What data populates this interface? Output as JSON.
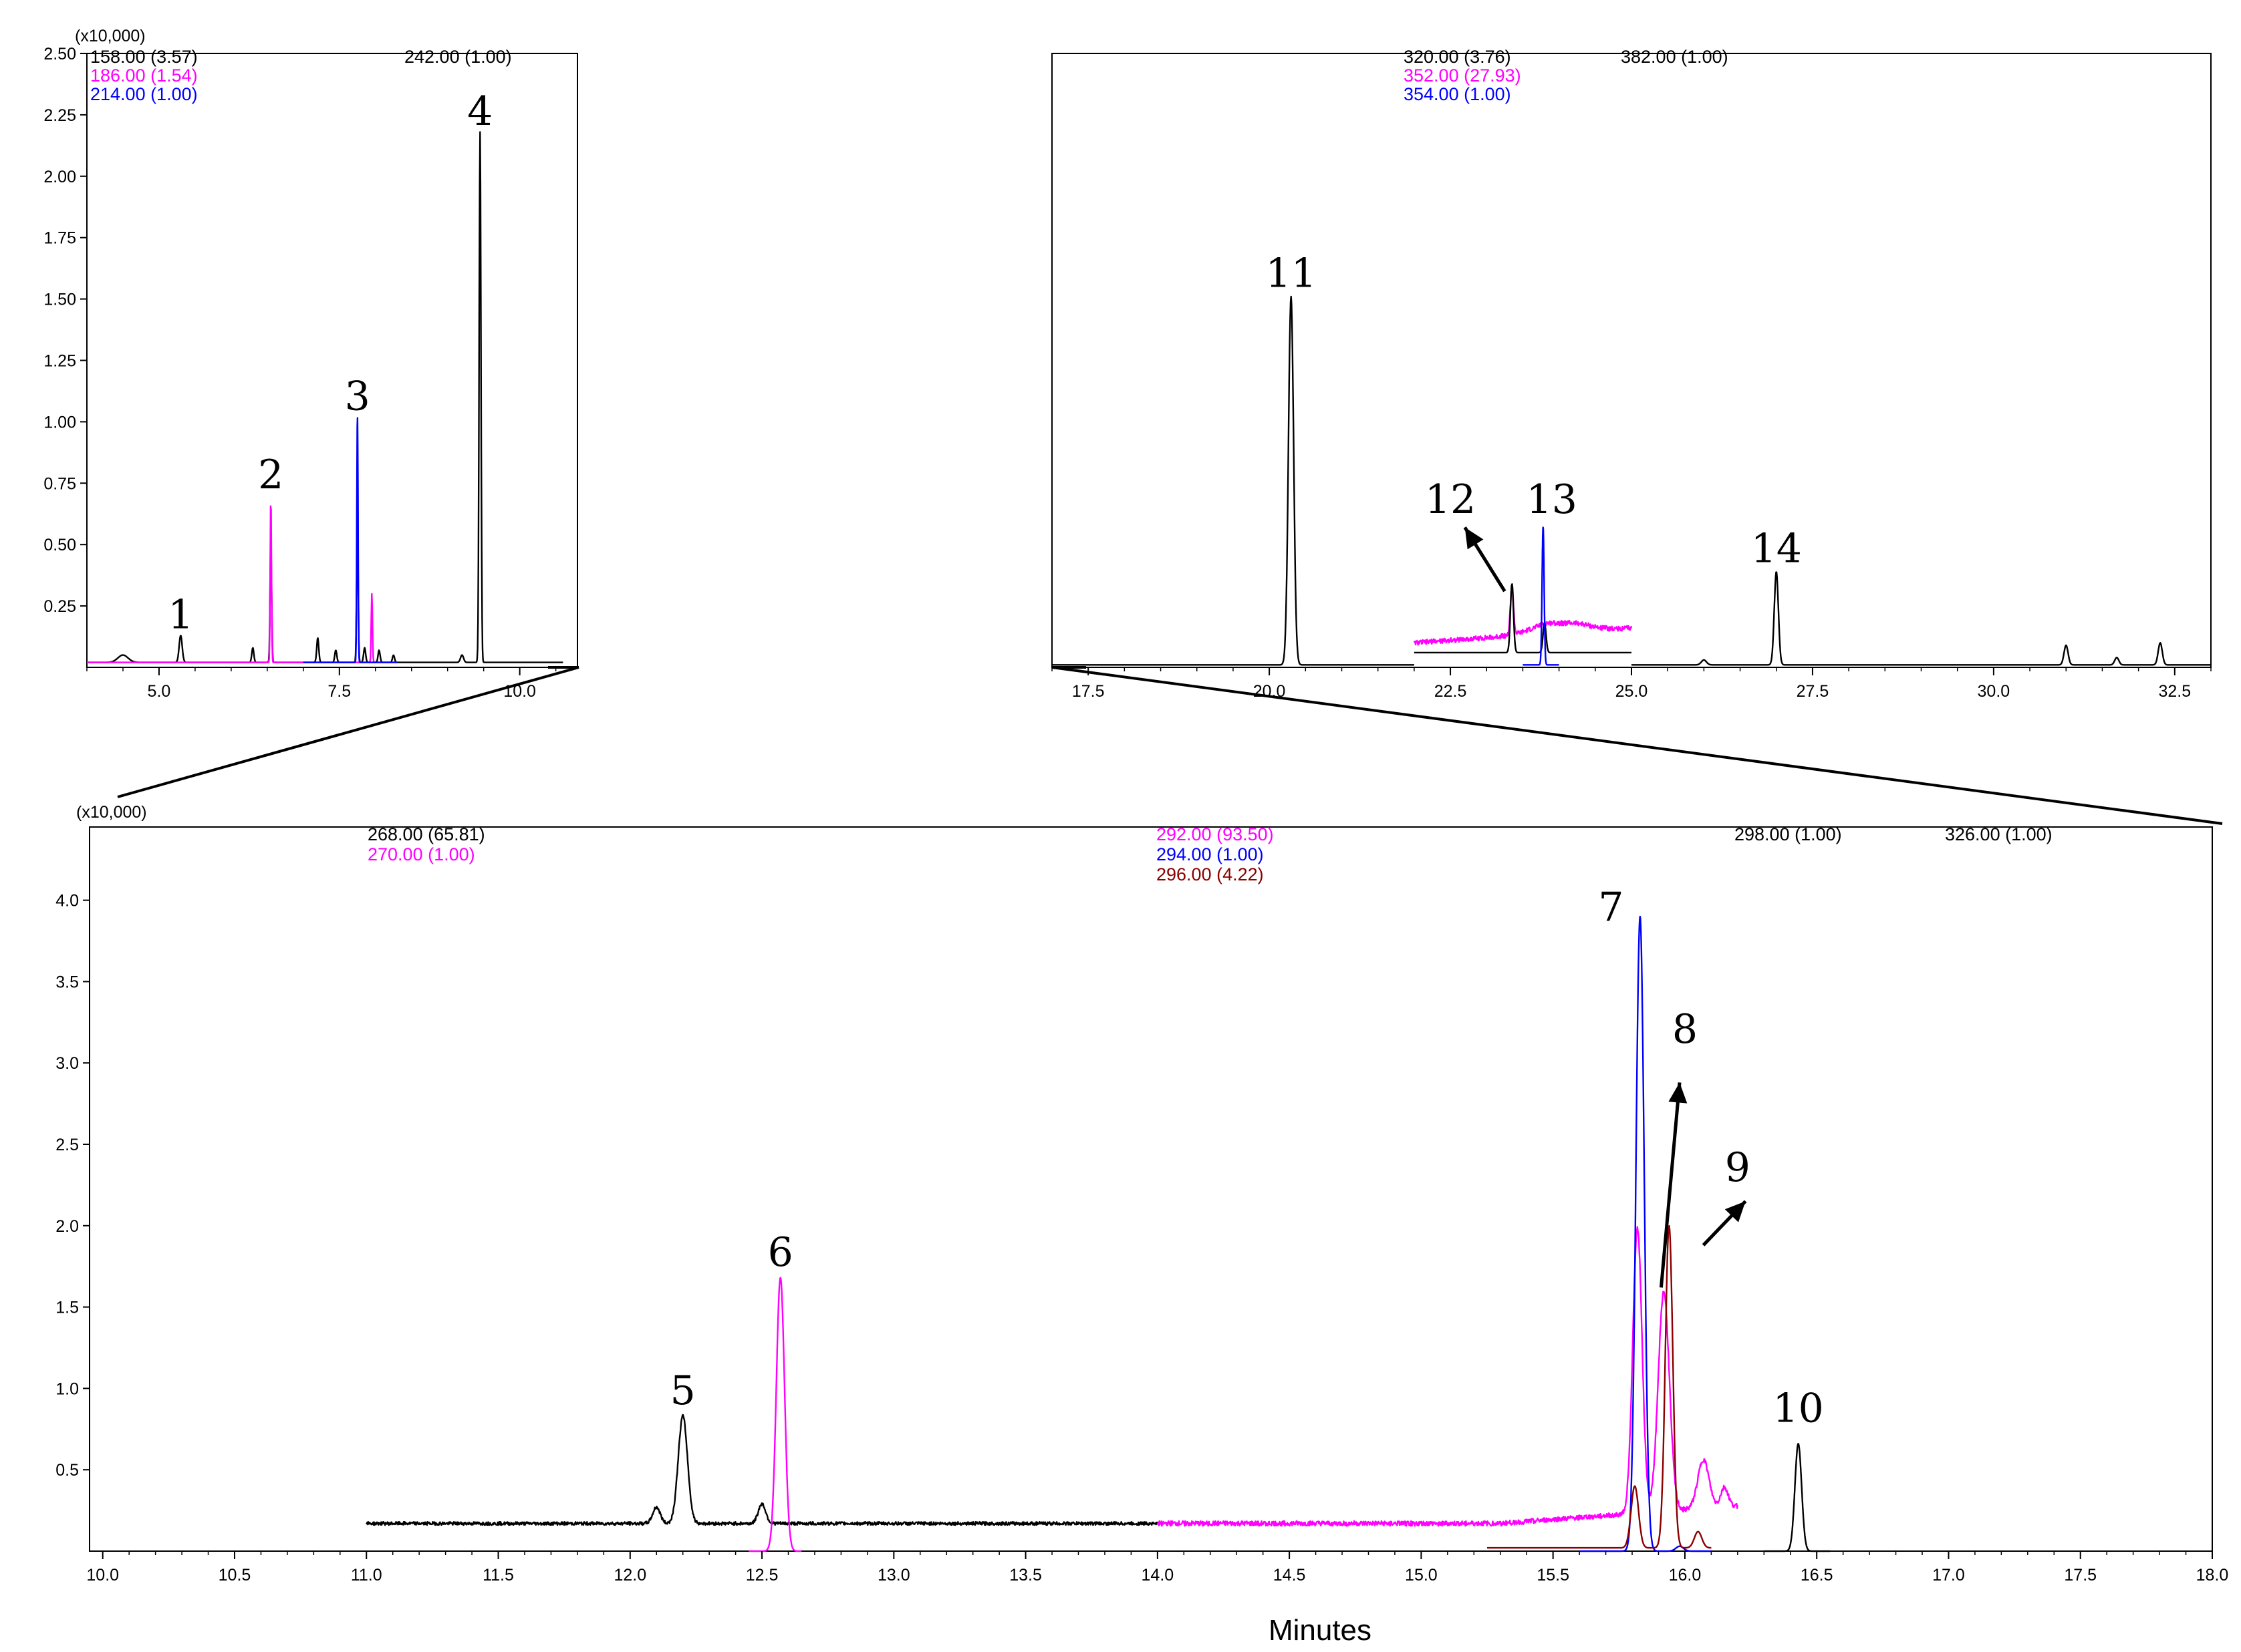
{
  "figure": {
    "colors": {
      "black": "#000000",
      "magenta": "#ff00ff",
      "blue": "#0000ff",
      "darkred": "#8b0000"
    },
    "x_axis_title": "Minutes"
  },
  "chart_data": [
    {
      "id": "top-left",
      "type": "line",
      "y_multiplier": "(x10,000)",
      "xlim": [
        4.0,
        10.8
      ],
      "ylim": [
        0,
        2.5
      ],
      "xticks": [
        5.0,
        7.5,
        10.0
      ],
      "xtick_labels": [
        "5.0",
        "7.5",
        "10.0"
      ],
      "yticks": [
        0.25,
        0.5,
        0.75,
        1.0,
        1.25,
        1.5,
        1.75,
        2.0,
        2.25,
        2.5
      ],
      "ytick_labels": [
        "0.25",
        "0.50",
        "0.75",
        "1.00",
        "1.25",
        "1.50",
        "1.75",
        "2.00",
        "2.25",
        "2.50"
      ],
      "ion_labels": [
        {
          "text": "158.00 (3.57)",
          "color": "#000000"
        },
        {
          "text": "186.00 (1.54)",
          "color": "#ff00ff"
        },
        {
          "text": "214.00 (1.00)",
          "color": "#0000ff"
        },
        {
          "text": "242.00 (1.00)",
          "color": "#000000"
        }
      ],
      "baseline": 0.02,
      "series": [
        {
          "color": "#000000",
          "range": [
            4.0,
            8.3
          ],
          "peaks": [
            {
              "x": 4.5,
              "h": 0.03,
              "w": 0.1
            },
            {
              "x": 5.3,
              "h": 0.11,
              "w": 0.03
            },
            {
              "x": 6.55,
              "h": 0.5,
              "w": 0.015
            },
            {
              "x": 6.3,
              "h": 0.06,
              "w": 0.02
            },
            {
              "x": 7.2,
              "h": 0.1,
              "w": 0.02
            },
            {
              "x": 7.45,
              "h": 0.05,
              "w": 0.02
            },
            {
              "x": 7.75,
              "h": 0.55,
              "w": 0.015
            },
            {
              "x": 7.85,
              "h": 0.06,
              "w": 0.02
            },
            {
              "x": 8.05,
              "h": 0.05,
              "w": 0.02
            },
            {
              "x": 8.25,
              "h": 0.03,
              "w": 0.02
            }
          ]
        },
        {
          "color": "#ff00ff",
          "range": [
            4.0,
            8.3
          ],
          "peaks": [
            {
              "x": 6.55,
              "h": 0.68,
              "w": 0.012
            },
            {
              "x": 7.95,
              "h": 0.28,
              "w": 0.012
            }
          ]
        },
        {
          "color": "#0000ff",
          "range": [
            7.0,
            8.3
          ],
          "peaks": [
            {
              "x": 7.75,
              "h": 1.0,
              "w": 0.012
            }
          ]
        },
        {
          "color": "#000000",
          "range": [
            8.3,
            10.6
          ],
          "peaks": [
            {
              "x": 9.2,
              "h": 0.03,
              "w": 0.03
            },
            {
              "x": 9.45,
              "h": 2.16,
              "w": 0.018
            }
          ]
        }
      ],
      "peak_labels": [
        {
          "text": "1",
          "x": 5.3,
          "y": 0.11
        },
        {
          "text": "2",
          "x": 6.55,
          "y": 0.68
        },
        {
          "text": "3",
          "x": 7.75,
          "y": 1.0
        },
        {
          "text": "4",
          "x": 9.45,
          "y": 2.16
        }
      ]
    },
    {
      "id": "top-right",
      "type": "line",
      "xlim": [
        17.0,
        33.0
      ],
      "ylim": [
        0,
        2.5
      ],
      "xticks": [
        17.5,
        20.0,
        22.5,
        25.0,
        27.5,
        30.0,
        32.5
      ],
      "xtick_labels": [
        "17.5",
        "20.0",
        "22.5",
        "25.0",
        "27.5",
        "30.0",
        "32.5"
      ],
      "ion_labels": [
        {
          "text": "320.00 (3.76)",
          "color": "#000000"
        },
        {
          "text": "352.00 (27.93)",
          "color": "#ff00ff"
        },
        {
          "text": "354.00 (1.00)",
          "color": "#0000ff"
        },
        {
          "text": "382.00 (1.00)",
          "color": "#000000"
        }
      ],
      "baseline": 0.01,
      "series": [
        {
          "color": "#000000",
          "range": [
            17.0,
            22.0
          ],
          "peaks": [
            {
              "x": 20.3,
              "h": 1.5,
              "w": 0.05
            }
          ]
        },
        {
          "color": "#ff00ff",
          "range": [
            22.0,
            25.0
          ],
          "hump": true,
          "peaks": [
            {
              "x": 23.35,
              "h": 0.2,
              "w": 0.03
            }
          ]
        },
        {
          "color": "#000000",
          "range": [
            22.0,
            25.0
          ],
          "low": true,
          "peaks": [
            {
              "x": 23.35,
              "h": 0.28,
              "w": 0.03
            },
            {
              "x": 23.8,
              "h": 0.12,
              "w": 0.03
            }
          ]
        },
        {
          "color": "#0000ff",
          "range": [
            23.5,
            24.0
          ],
          "peaks": [
            {
              "x": 23.78,
              "h": 0.56,
              "w": 0.02
            }
          ]
        },
        {
          "color": "#000000",
          "range": [
            25.0,
            33.0
          ],
          "peaks": [
            {
              "x": 26.0,
              "h": 0.02,
              "w": 0.05
            },
            {
              "x": 27.0,
              "h": 0.38,
              "w": 0.04
            },
            {
              "x": 31.0,
              "h": 0.08,
              "w": 0.04
            },
            {
              "x": 31.7,
              "h": 0.03,
              "w": 0.04
            },
            {
              "x": 32.3,
              "h": 0.09,
              "w": 0.04
            }
          ]
        }
      ],
      "peak_labels": [
        {
          "text": "11",
          "x": 20.3,
          "y": 1.5
        },
        {
          "text": "12",
          "x": 22.5,
          "y": 0.58
        },
        {
          "text": "13",
          "x": 23.9,
          "y": 0.58
        },
        {
          "text": "14",
          "x": 27.0,
          "y": 0.38
        }
      ]
    },
    {
      "id": "bottom",
      "type": "line",
      "y_multiplier": "(x10,000)",
      "xlim": [
        9.95,
        18.0
      ],
      "ylim": [
        0,
        4.45
      ],
      "xticks": [
        10.0,
        10.5,
        11.0,
        11.5,
        12.0,
        12.5,
        13.0,
        13.5,
        14.0,
        14.5,
        15.0,
        15.5,
        16.0,
        16.5,
        17.0,
        17.5,
        18.0
      ],
      "xtick_labels": [
        "10.0",
        "10.5",
        "11.0",
        "11.5",
        "12.0",
        "12.5",
        "13.0",
        "13.5",
        "14.0",
        "14.5",
        "15.0",
        "15.5",
        "16.0",
        "16.5",
        "17.0",
        "17.5",
        "18.0"
      ],
      "yticks": [
        0.5,
        1.0,
        1.5,
        2.0,
        2.5,
        3.0,
        3.5,
        4.0
      ],
      "ytick_labels": [
        "0.5",
        "1.0",
        "1.5",
        "2.0",
        "2.5",
        "3.0",
        "3.5",
        "4.0"
      ],
      "ion_labels": [
        {
          "text": "268.00 (65.81)",
          "color": "#000000"
        },
        {
          "text": "270.00 (1.00)",
          "color": "#ff00ff"
        },
        {
          "text": "292.00 (93.50)",
          "color": "#ff00ff"
        },
        {
          "text": "294.00 (1.00)",
          "color": "#0000ff"
        },
        {
          "text": "296.00 (4.22)",
          "color": "#8b0000"
        },
        {
          "text": "298.00 (1.00)",
          "color": "#000000"
        },
        {
          "text": "326.00 (1.00)",
          "color": "#000000"
        }
      ],
      "series": [
        {
          "color": "#000000",
          "range": [
            11.0,
            14.0
          ],
          "base": 0.17,
          "noise": 0.02,
          "peaks": [
            {
              "x": 12.1,
              "h": 0.1,
              "w": 0.02
            },
            {
              "x": 12.2,
              "h": 0.66,
              "w": 0.025
            },
            {
              "x": 12.5,
              "h": 0.12,
              "w": 0.02
            }
          ]
        },
        {
          "color": "#ff00ff",
          "range": [
            12.45,
            12.65
          ],
          "base": 0.0,
          "peaks": [
            {
              "x": 12.57,
              "h": 1.68,
              "w": 0.022
            }
          ]
        },
        {
          "color": "#ff00ff",
          "range": [
            14.0,
            16.2
          ],
          "base": 0.17,
          "noise": 0.03,
          "ramp": true,
          "peaks": [
            {
              "x": 15.82,
              "h": 1.75,
              "w": 0.025
            },
            {
              "x": 15.92,
              "h": 1.35,
              "w": 0.03
            },
            {
              "x": 16.07,
              "h": 0.3,
              "w": 0.03
            },
            {
              "x": 16.15,
              "h": 0.12,
              "w": 0.02
            }
          ]
        },
        {
          "color": "#0000ff",
          "range": [
            15.6,
            16.1
          ],
          "base": 0.0,
          "peaks": [
            {
              "x": 15.83,
              "h": 3.9,
              "w": 0.022
            },
            {
              "x": 15.98,
              "h": 0.03,
              "w": 0.02
            }
          ]
        },
        {
          "color": "#8b0000",
          "range": [
            15.25,
            16.1
          ],
          "base": 0.02,
          "peaks": [
            {
              "x": 15.81,
              "h": 0.38,
              "w": 0.02
            },
            {
              "x": 15.94,
              "h": 1.98,
              "w": 0.02
            },
            {
              "x": 16.05,
              "h": 0.1,
              "w": 0.02
            }
          ]
        },
        {
          "color": "#000000",
          "range": [
            16.3,
            16.55
          ],
          "base": 0.0,
          "peaks": [
            {
              "x": 16.43,
              "h": 0.66,
              "w": 0.018
            }
          ]
        }
      ],
      "peak_labels": [
        {
          "text": "5",
          "x": 12.2,
          "y": 0.83
        },
        {
          "text": "6",
          "x": 12.57,
          "y": 1.68
        },
        {
          "text": "7",
          "x": 15.72,
          "y": 3.8
        },
        {
          "text": "8",
          "x": 16.0,
          "y": 3.05
        },
        {
          "text": "9",
          "x": 16.2,
          "y": 2.2
        },
        {
          "text": "10",
          "x": 16.43,
          "y": 0.72
        }
      ]
    }
  ]
}
